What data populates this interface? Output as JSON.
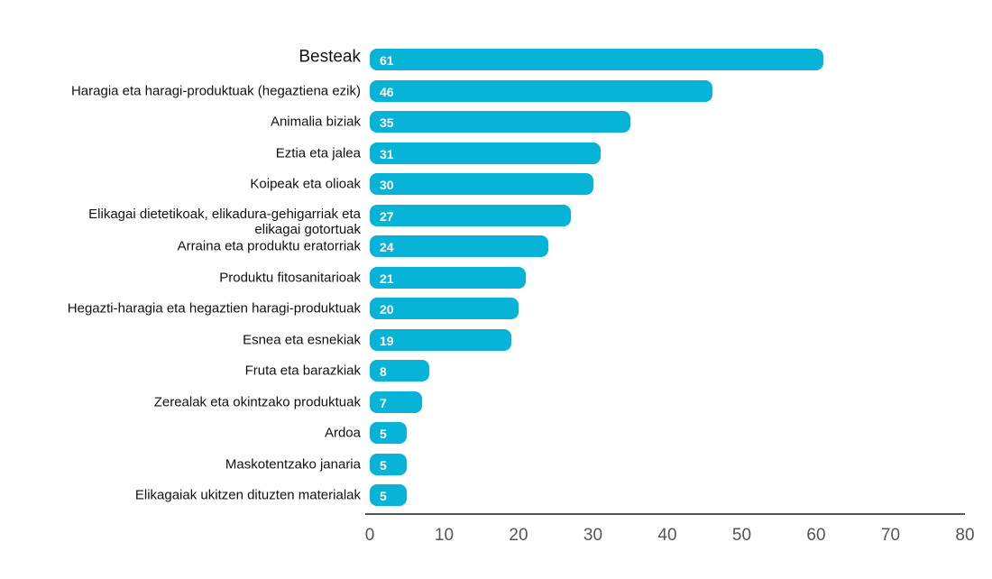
{
  "chart_data": {
    "type": "bar",
    "orientation": "horizontal",
    "categories": [
      "Besteak",
      "Haragia eta haragi-produktuak (hegaztiena ezik)",
      "Animalia biziak",
      "Eztia eta jalea",
      "Koipeak eta olioak",
      "Elikagai dietetikoak, elikadura-gehigarriak eta elikagai gotortuak",
      "Arraina eta produktu eratorriak",
      "Produktu fitosanitarioak",
      "Hegazti-haragia eta hegaztien haragi-produktuak",
      "Esnea eta esnekiak",
      "Fruta eta barazkiak",
      "Zerealak eta okintzako produktuak",
      "Ardoa",
      "Maskotentzako janaria",
      "Elikagaiak ukitzen dituzten materialak"
    ],
    "values": [
      61,
      46,
      35,
      31,
      30,
      27,
      24,
      21,
      20,
      19,
      8,
      7,
      5,
      5,
      5
    ],
    "color": "#07b3d6",
    "xlim": [
      0,
      80
    ],
    "xticks": [
      0,
      10,
      20,
      30,
      40,
      50,
      60,
      70,
      80
    ],
    "grid": false
  }
}
